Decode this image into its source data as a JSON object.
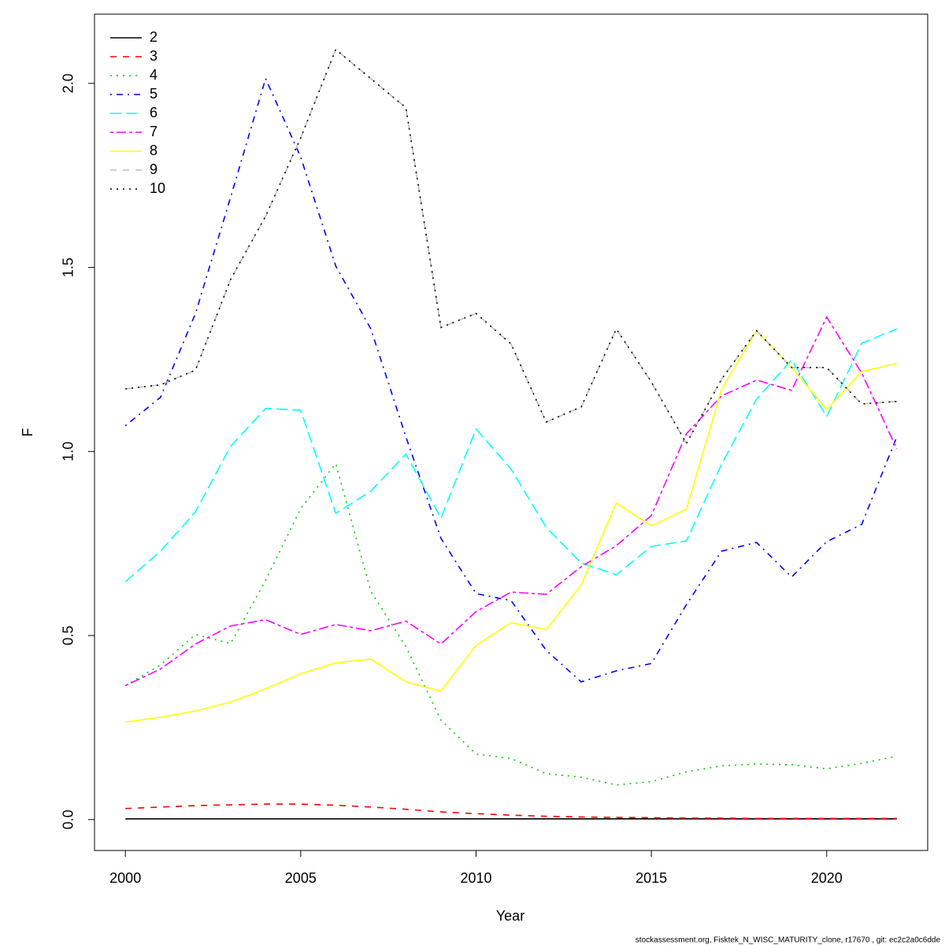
{
  "chart_data": {
    "type": "line",
    "x_label": "Year",
    "y_label": "F",
    "footer": "stockassessment.org, Fisktek_N_WISC_MATURITY_clone, r17670 , git: ec2c2a0c6dde",
    "legend": "topleft",
    "x": [
      2000,
      2001,
      2002,
      2003,
      2004,
      2005,
      2006,
      2007,
      2008,
      2009,
      2010,
      2011,
      2012,
      2013,
      2014,
      2015,
      2016,
      2017,
      2018,
      2019,
      2020,
      2021,
      2022
    ],
    "xlim": [
      1999.12,
      2022.88
    ],
    "xticks": [
      2000,
      2005,
      2010,
      2015,
      2020
    ],
    "ylim": [
      -0.084,
      2.188
    ],
    "yticks": [
      {
        "value": 0,
        "label": "0.0"
      },
      {
        "value": 0.5,
        "label": "0.5"
      },
      {
        "value": 1,
        "label": "1.0"
      },
      {
        "value": 1.5,
        "label": "1.5"
      },
      {
        "value": 2,
        "label": "2.0"
      }
    ],
    "series": [
      {
        "name": "2",
        "color": "#000000",
        "line_style": "solid",
        "values": [
          0.002,
          0.002,
          0.002,
          0.002,
          0.002,
          0.002,
          0.002,
          0.002,
          0.002,
          0.002,
          0.002,
          0.002,
          0.002,
          0.002,
          0.002,
          0.002,
          0.002,
          0.002,
          0.002,
          0.002,
          0.002,
          0.002,
          0.002
        ]
      },
      {
        "name": "3",
        "color": "#ff0000",
        "line_style": "dashed",
        "values": [
          0.03,
          0.034,
          0.038,
          0.04,
          0.042,
          0.042,
          0.039,
          0.034,
          0.028,
          0.021,
          0.016,
          0.012,
          0.009,
          0.007,
          0.006,
          0.005,
          0.004,
          0.004,
          0.003,
          0.003,
          0.003,
          0.003,
          0.003
        ]
      },
      {
        "name": "4",
        "color": "#00cd00",
        "line_style": "dotted",
        "values": [
          0.364,
          0.42,
          0.503,
          0.478,
          0.65,
          0.845,
          0.967,
          0.62,
          0.47,
          0.27,
          0.178,
          0.166,
          0.125,
          0.115,
          0.094,
          0.103,
          0.13,
          0.146,
          0.151,
          0.149,
          0.138,
          0.153,
          0.172
        ]
      },
      {
        "name": "5",
        "color": "#0000ff",
        "line_style": "dotdash",
        "values": [
          1.07,
          1.147,
          1.375,
          1.69,
          2.013,
          1.8,
          1.504,
          1.333,
          1.04,
          0.764,
          0.614,
          0.595,
          0.46,
          0.374,
          0.404,
          0.424,
          0.584,
          0.729,
          0.753,
          0.659,
          0.755,
          0.802,
          1.04
        ]
      },
      {
        "name": "6",
        "color": "#00ffff",
        "line_style": "longdash",
        "values": [
          0.646,
          0.729,
          0.836,
          1.014,
          1.117,
          1.112,
          0.832,
          0.892,
          0.993,
          0.819,
          1.061,
          0.952,
          0.794,
          0.697,
          0.665,
          0.742,
          0.757,
          0.965,
          1.142,
          1.249,
          1.095,
          1.294,
          1.333
        ]
      },
      {
        "name": "7",
        "color": "#ff00ff",
        "line_style": "twodash",
        "values": [
          0.364,
          0.409,
          0.477,
          0.526,
          0.543,
          0.503,
          0.53,
          0.513,
          0.539,
          0.477,
          0.565,
          0.618,
          0.612,
          0.687,
          0.744,
          0.826,
          1.048,
          1.151,
          1.194,
          1.166,
          1.365,
          1.213,
          1.007
        ]
      },
      {
        "name": "8",
        "color": "#ffff00",
        "line_style": "solid",
        "values": [
          0.265,
          0.278,
          0.295,
          0.319,
          0.355,
          0.396,
          0.426,
          0.436,
          0.374,
          0.349,
          0.473,
          0.535,
          0.516,
          0.637,
          0.86,
          0.798,
          0.843,
          1.168,
          1.328,
          1.228,
          1.114,
          1.217,
          1.239
        ]
      },
      {
        "name": "9",
        "color": "#bebebe",
        "line_style": "dashed",
        "values": [
          1.17,
          1.181,
          1.221,
          1.467,
          1.639,
          1.852,
          2.092,
          2.013,
          1.934,
          1.337,
          1.375,
          1.292,
          1.08,
          1.121,
          1.333,
          1.189,
          1.022,
          1.196,
          1.328,
          1.228,
          1.228,
          1.129,
          1.136
        ]
      },
      {
        "name": "10",
        "color": "#000000",
        "line_style": "dotted",
        "values": [
          1.17,
          1.181,
          1.221,
          1.467,
          1.639,
          1.852,
          2.092,
          2.013,
          1.934,
          1.337,
          1.375,
          1.292,
          1.08,
          1.121,
          1.333,
          1.189,
          1.022,
          1.196,
          1.328,
          1.228,
          1.228,
          1.129,
          1.136
        ]
      }
    ]
  }
}
